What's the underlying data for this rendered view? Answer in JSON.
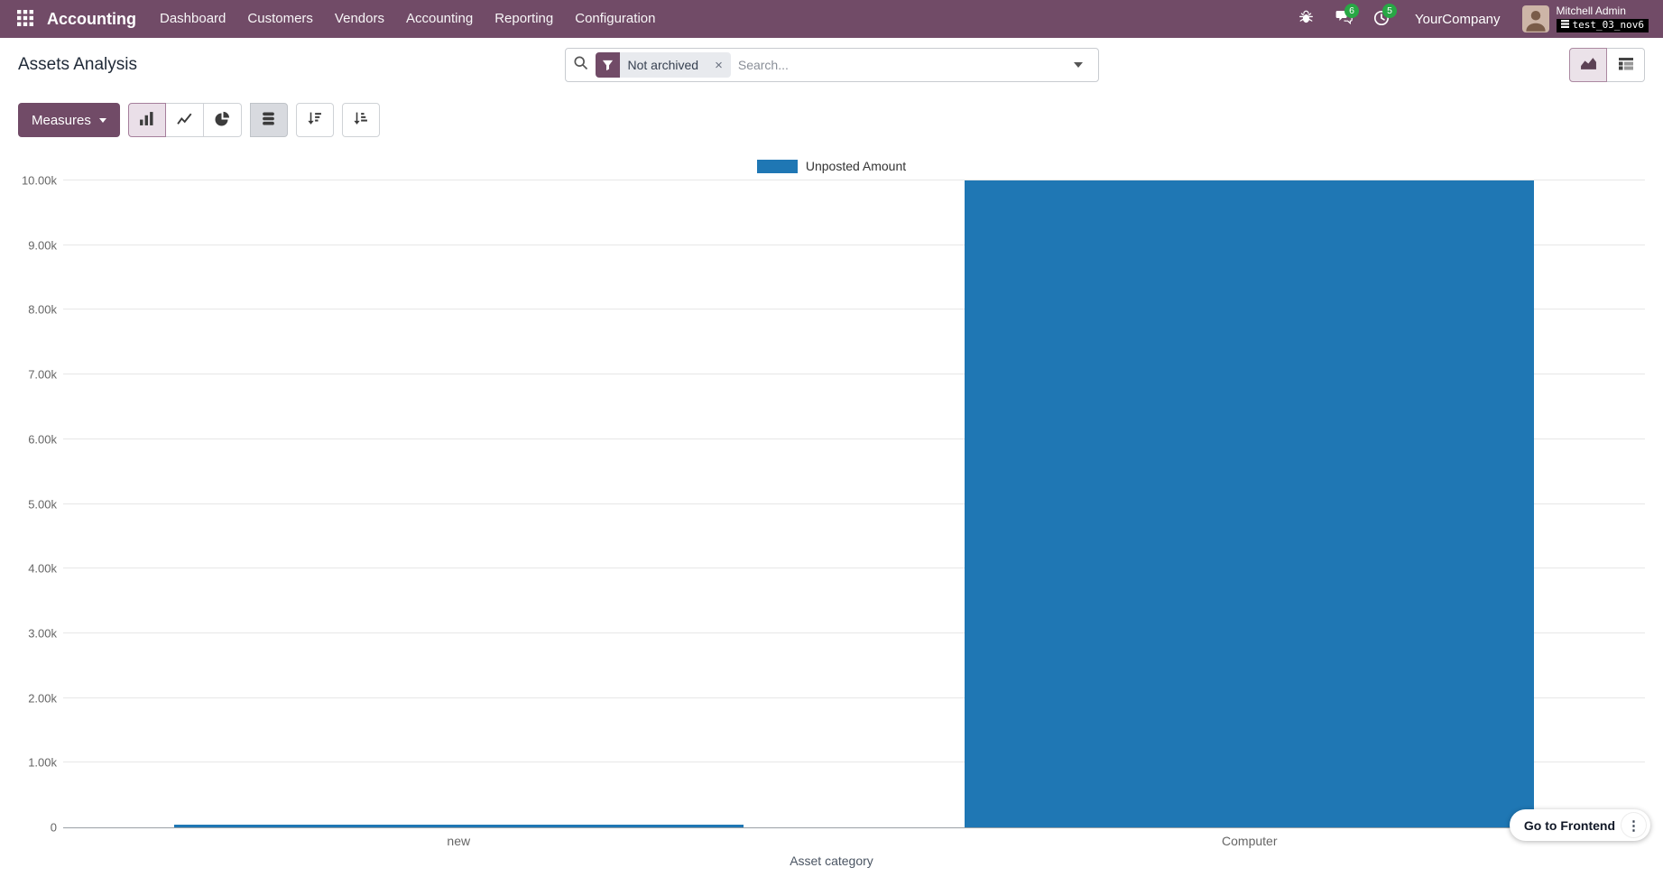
{
  "app": {
    "name": "Accounting",
    "menus": [
      "Dashboard",
      "Customers",
      "Vendors",
      "Accounting",
      "Reporting",
      "Configuration"
    ]
  },
  "topbar": {
    "company": "YourCompany",
    "user_name": "Mitchell Admin",
    "database": "test_03_nov6",
    "messages_badge": "6",
    "activities_badge": "5"
  },
  "control_panel": {
    "title": "Assets Analysis",
    "search_placeholder": "Search...",
    "filter_chip": "Not archived"
  },
  "toolbar": {
    "measures_label": "Measures"
  },
  "chart_data": {
    "type": "bar",
    "stacked": true,
    "title": "",
    "categories": [
      "new",
      "Computer"
    ],
    "series": [
      {
        "name": "Unposted Amount",
        "values": [
          40,
          10000
        ]
      }
    ],
    "xlabel": "Asset category",
    "ylabel": "",
    "ylim": [
      0,
      10000
    ],
    "ytick_step": 1000,
    "ytick_labels": [
      "0",
      "1.00k",
      "2.00k",
      "3.00k",
      "4.00k",
      "5.00k",
      "6.00k",
      "7.00k",
      "8.00k",
      "9.00k",
      "10.00k"
    ],
    "legend_position": "top",
    "grid": true,
    "bar_color": "#1f77b4"
  },
  "floating": {
    "frontend_label": "Go to Frontend"
  },
  "icons": {
    "close": "×",
    "dots": "⋮"
  },
  "colors": {
    "primary": "#714B67",
    "badge_green": "#28a745",
    "bar_blue": "#1f77b4",
    "topbar_bg": "#714B67"
  }
}
